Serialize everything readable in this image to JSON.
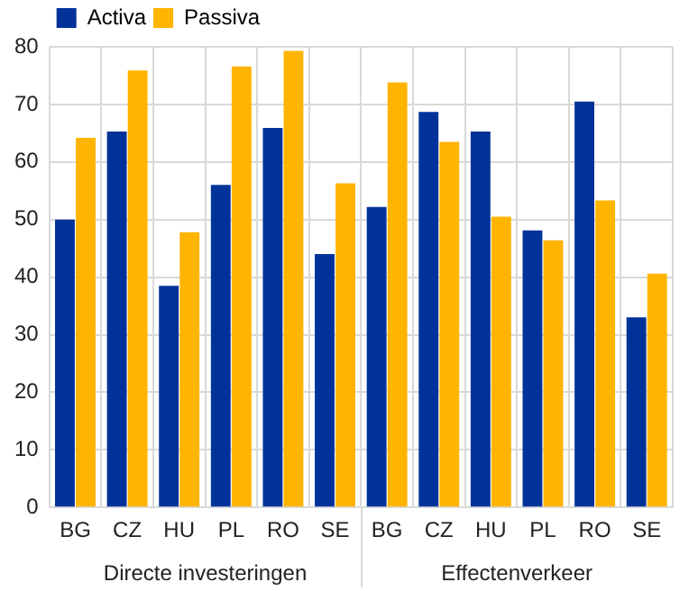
{
  "chart_data": {
    "type": "bar",
    "categories": [
      "BG",
      "CZ",
      "HU",
      "PL",
      "RO",
      "SE",
      "BG",
      "CZ",
      "HU",
      "PL",
      "RO",
      "SE"
    ],
    "series": [
      {
        "name": "Activa",
        "color": "#003299",
        "values": [
          50,
          65.3,
          38.5,
          56,
          65.9,
          44,
          52.2,
          68.7,
          65.3,
          48.1,
          70.5,
          33
        ]
      },
      {
        "name": "Passiva",
        "color": "#ffb400",
        "values": [
          64.2,
          75.9,
          47.8,
          76.6,
          79.3,
          56.3,
          73.8,
          63.5,
          50.5,
          46.4,
          53.3,
          40.6
        ]
      }
    ],
    "ylim": [
      0,
      80
    ],
    "yticks": [
      0,
      10,
      20,
      30,
      40,
      50,
      60,
      70,
      80
    ],
    "grid": true,
    "legend": "top left",
    "annotations": [
      "Directe investeringen",
      "Effectenverkeer"
    ]
  }
}
